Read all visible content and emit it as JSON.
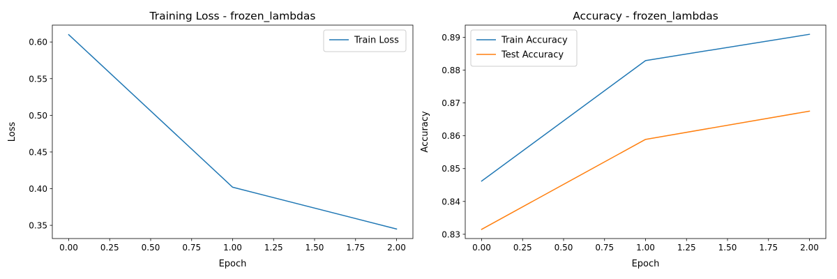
{
  "chart_data": [
    {
      "type": "line",
      "title": "Training Loss - frozen_lambdas",
      "xlabel": "Epoch",
      "ylabel": "Loss",
      "xlim": [
        -0.1,
        2.1
      ],
      "ylim": [
        0.332,
        0.623
      ],
      "xticks": [
        "0.00",
        "0.25",
        "0.50",
        "0.75",
        "1.00",
        "1.25",
        "1.50",
        "1.75",
        "2.00"
      ],
      "yticks": [
        "0.35",
        "0.40",
        "0.45",
        "0.50",
        "0.55",
        "0.60"
      ],
      "grid": false,
      "legend": "upper right",
      "series": [
        {
          "name": "Train Loss",
          "color": "#1f77b4",
          "x": [
            0,
            1,
            2
          ],
          "y": [
            0.61,
            0.402,
            0.345
          ]
        }
      ]
    },
    {
      "type": "line",
      "title": "Accuracy - frozen_lambdas",
      "xlabel": "Epoch",
      "ylabel": "Accuracy",
      "xlim": [
        -0.1,
        2.1
      ],
      "ylim": [
        0.8287,
        0.8937
      ],
      "xticks": [
        "0.00",
        "0.25",
        "0.50",
        "0.75",
        "1.00",
        "1.25",
        "1.50",
        "1.75",
        "2.00"
      ],
      "yticks": [
        "0.83",
        "0.84",
        "0.85",
        "0.86",
        "0.87",
        "0.88",
        "0.89"
      ],
      "grid": false,
      "legend": "upper left",
      "series": [
        {
          "name": "Train Accuracy",
          "color": "#1f77b4",
          "x": [
            0,
            1,
            2
          ],
          "y": [
            0.8462,
            0.8829,
            0.8909
          ]
        },
        {
          "name": "Test Accuracy",
          "color": "#ff7f0e",
          "x": [
            0,
            1,
            2
          ],
          "y": [
            0.8315,
            0.8589,
            0.8675
          ]
        }
      ]
    }
  ]
}
